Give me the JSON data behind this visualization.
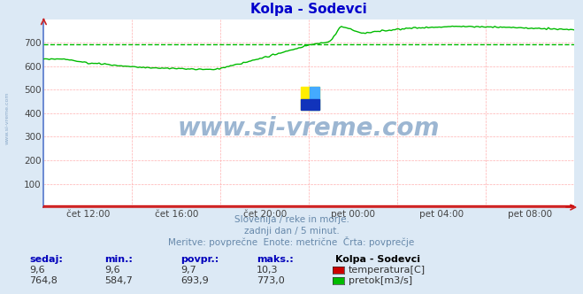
{
  "title": "Kolpa - Sodevci",
  "background_color": "#dce9f5",
  "plot_bg_color": "#ffffff",
  "grid_color_h": "#ffb0b0",
  "grid_color_v": "#ffb0b0",
  "left_spine_color": "#5577cc",
  "bottom_spine_color": "#cc2222",
  "ylim": [
    0,
    800
  ],
  "yticks": [
    100,
    200,
    300,
    400,
    500,
    600,
    700
  ],
  "avg_line_value": 693.9,
  "avg_line_color": "#00bb00",
  "flow_color": "#00bb00",
  "temp_color": "#cc0000",
  "x_labels": [
    "čet 12:00",
    "čet 16:00",
    "čet 20:00",
    "pet 00:00",
    "pet 04:00",
    "pet 08:00"
  ],
  "subtitle1": "Slovenija / reke in morje.",
  "subtitle2": "zadnji dan / 5 minut.",
  "subtitle3": "Meritve: povprečne  Enote: metrične  Črta: povprečje",
  "watermark": "www.si-vreme.com",
  "watermark_color": "#8baaca",
  "left_text": "www.si-vreme.com",
  "left_text_color": "#8baaca",
  "table_headers": [
    "sedaj:",
    "min.:",
    "povpr.:",
    "maks.:"
  ],
  "table_label": "Kolpa - Sodevci",
  "temp_row": [
    "9,6",
    "9,6",
    "9,7",
    "10,3"
  ],
  "flow_row": [
    "764,8",
    "584,7",
    "693,9",
    "773,0"
  ],
  "legend_temp": "temperatura[C]",
  "legend_flow": "pretok[m3/s]",
  "subtitle_color": "#6688aa",
  "header_color": "#0000bb",
  "data_color": "#333333"
}
